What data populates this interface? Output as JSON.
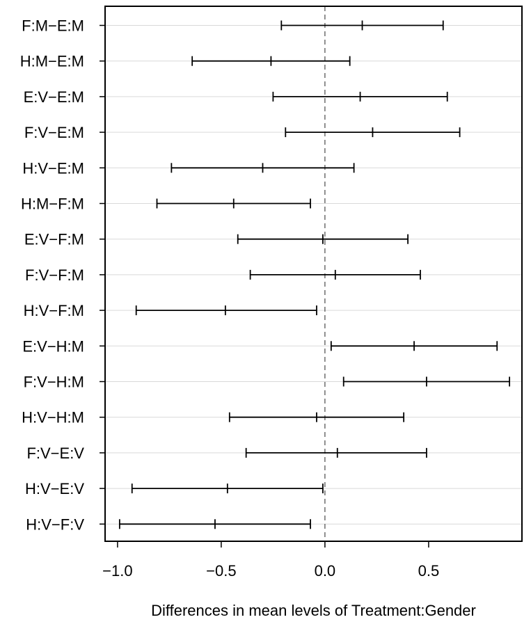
{
  "chart_data": {
    "type": "scatter",
    "subtype": "confidence-interval",
    "title": "",
    "xlabel": "Differences in mean levels of Treatment:Gender",
    "ylabel": "",
    "xlim": [
      -1.06,
      0.95
    ],
    "xticks": [
      -1.0,
      -0.5,
      0.0,
      0.5
    ],
    "xtick_labels": [
      "−1.0",
      "−0.5",
      "0.0",
      "0.5"
    ],
    "reference_line": 0.0,
    "grid": "horizontal",
    "legend": "none",
    "categories": [
      "F:M−E:M",
      "H:M−E:M",
      "E:V−E:M",
      "F:V−E:M",
      "H:V−E:M",
      "H:M−F:M",
      "E:V−F:M",
      "F:V−F:M",
      "H:V−F:M",
      "E:V−H:M",
      "F:V−H:M",
      "H:V−H:M",
      "F:V−E:V",
      "H:V−E:V",
      "H:V−F:V"
    ],
    "lower": [
      -0.21,
      -0.64,
      -0.25,
      -0.19,
      -0.74,
      -0.81,
      -0.42,
      -0.36,
      -0.91,
      0.03,
      0.09,
      -0.46,
      -0.38,
      -0.93,
      -0.99
    ],
    "estimate": [
      0.18,
      -0.26,
      0.17,
      0.23,
      -0.3,
      -0.44,
      -0.01,
      0.05,
      -0.48,
      0.43,
      0.49,
      -0.04,
      0.06,
      -0.47,
      -0.53
    ],
    "upper": [
      0.57,
      0.12,
      0.59,
      0.65,
      0.14,
      -0.07,
      0.4,
      0.46,
      -0.04,
      0.83,
      0.89,
      0.38,
      0.49,
      -0.01,
      -0.07
    ]
  }
}
